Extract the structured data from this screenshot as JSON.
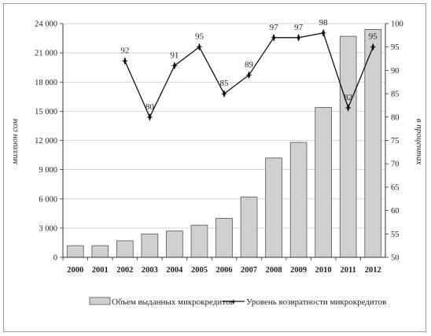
{
  "chart_data": {
    "type": "bar+line",
    "categories": [
      "2000",
      "2001",
      "2002",
      "2003",
      "2004",
      "2005",
      "2006",
      "2007",
      "2008",
      "2009",
      "2010",
      "2011",
      "2012"
    ],
    "bar_series": {
      "name": "Объем выданных микрокредитов",
      "values": [
        1200,
        1200,
        1700,
        2400,
        2700,
        3300,
        4000,
        6200,
        10200,
        11800,
        15400,
        22700,
        23400
      ],
      "color": "#d0d0d0"
    },
    "line_series": {
      "name": "Уровень возвратности микрокредитов",
      "points": [
        {
          "x": "2002",
          "y": 92
        },
        {
          "x": "2003",
          "y": 80
        },
        {
          "x": "2004",
          "y": 91
        },
        {
          "x": "2005",
          "y": 95
        },
        {
          "x": "2006",
          "y": 85
        },
        {
          "x": "2007",
          "y": 89
        },
        {
          "x": "2008",
          "y": 97
        },
        {
          "x": "2009",
          "y": 97
        },
        {
          "x": "2010",
          "y": 98
        },
        {
          "x": "2011",
          "y": 82
        },
        {
          "x": "2012",
          "y": 95
        }
      ],
      "color": "#111111"
    },
    "y_left": {
      "label": "миллион сом",
      "min": 0,
      "max": 24000,
      "ticks": [
        0,
        3000,
        6000,
        9000,
        12000,
        15000,
        18000,
        21000,
        24000
      ],
      "tick_labels": [
        "0",
        "3 000",
        "6 000",
        "9 000",
        "12 000",
        "15 000",
        "18 000",
        "21 000",
        "24 000"
      ]
    },
    "y_right": {
      "label": "в процентах",
      "min": 50,
      "max": 100,
      "ticks": [
        50,
        55,
        60,
        65,
        70,
        75,
        80,
        85,
        90,
        95,
        100
      ],
      "tick_labels": [
        "50",
        "55",
        "60",
        "65",
        "70",
        "75",
        "80",
        "85",
        "90",
        "95",
        "100"
      ]
    },
    "grid": true,
    "legend_position": "bottom"
  }
}
